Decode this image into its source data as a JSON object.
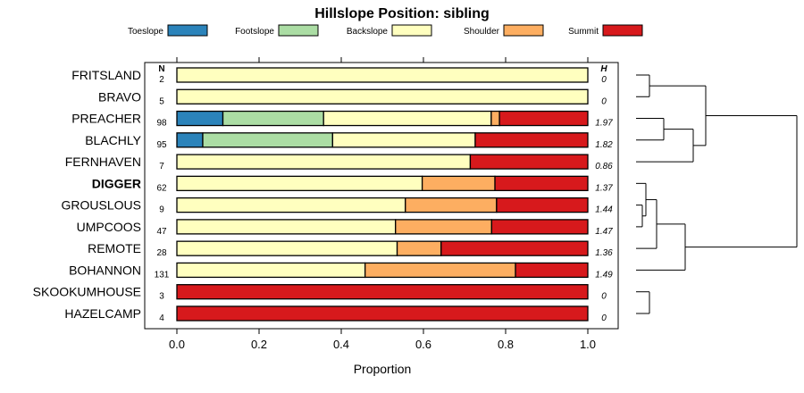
{
  "chart_data": {
    "type": "bar",
    "subtype": "stacked-horizontal-proportion",
    "title": "Hillslope Position: sibling",
    "xlabel": "Proportion",
    "xlim": [
      0,
      1
    ],
    "xticks": [
      "0.0",
      "0.2",
      "0.4",
      "0.6",
      "0.8",
      "1.0"
    ],
    "xtick_values": [
      0,
      0.2,
      0.4,
      0.6,
      0.8,
      1.0
    ],
    "legend_position": "top",
    "n_header": "N",
    "h_header": "H",
    "series": [
      {
        "name": "Toeslope",
        "color": "#2B83BA"
      },
      {
        "name": "Footslope",
        "color": "#ABDDA4"
      },
      {
        "name": "Backslope",
        "color": "#FFFFBF"
      },
      {
        "name": "Shoulder",
        "color": "#FDAE61"
      },
      {
        "name": "Summit",
        "color": "#D7191C"
      }
    ],
    "rows": [
      {
        "label": "FRITSLAND",
        "bold": false,
        "n": "2",
        "h": "0",
        "values": [
          0,
          0,
          1.0,
          0,
          0
        ]
      },
      {
        "label": "BRAVO",
        "bold": false,
        "n": "5",
        "h": "0",
        "values": [
          0,
          0,
          1.0,
          0,
          0
        ]
      },
      {
        "label": "PREACHER",
        "bold": false,
        "n": "98",
        "h": "1.97",
        "values": [
          0.112,
          0.245,
          0.408,
          0.02,
          0.215
        ]
      },
      {
        "label": "BLACHLY",
        "bold": false,
        "n": "95",
        "h": "1.82",
        "values": [
          0.063,
          0.316,
          0.347,
          0,
          0.274
        ]
      },
      {
        "label": "FERNHAVEN",
        "bold": false,
        "n": "7",
        "h": "0.86",
        "values": [
          0,
          0,
          0.714,
          0,
          0.286
        ]
      },
      {
        "label": "DIGGER",
        "bold": true,
        "n": "62",
        "h": "1.37",
        "values": [
          0,
          0,
          0.597,
          0.177,
          0.226
        ]
      },
      {
        "label": "GROUSLOUS",
        "bold": false,
        "n": "9",
        "h": "1.44",
        "values": [
          0,
          0,
          0.556,
          0.222,
          0.222
        ]
      },
      {
        "label": "UMPCOOS",
        "bold": false,
        "n": "47",
        "h": "1.47",
        "values": [
          0,
          0,
          0.532,
          0.234,
          0.234
        ]
      },
      {
        "label": "REMOTE",
        "bold": false,
        "n": "28",
        "h": "1.36",
        "values": [
          0,
          0,
          0.536,
          0.107,
          0.357
        ]
      },
      {
        "label": "BOHANNON",
        "bold": false,
        "n": "131",
        "h": "1.49",
        "values": [
          0,
          0,
          0.458,
          0.366,
          0.176
        ]
      },
      {
        "label": "SKOOKUMHOUSE",
        "bold": false,
        "n": "3",
        "h": "0",
        "values": [
          0,
          0,
          0,
          0,
          1.0
        ]
      },
      {
        "label": "HAZELCAMP",
        "bold": false,
        "n": "4",
        "h": "0",
        "values": [
          0,
          0,
          0,
          0,
          1.0
        ]
      }
    ]
  }
}
